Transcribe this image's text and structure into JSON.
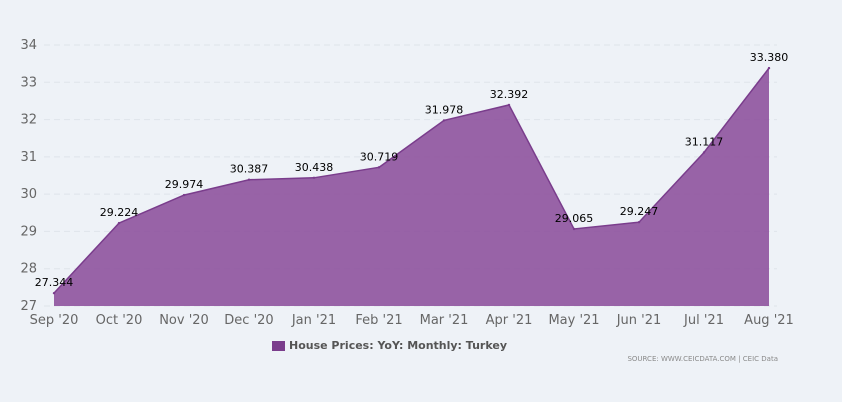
{
  "chart_data": {
    "type": "area",
    "categories": [
      "Sep '20",
      "Oct '20",
      "Nov '20",
      "Dec '20",
      "Jan '21",
      "Feb '21",
      "Mar '21",
      "Apr '21",
      "May '21",
      "Jun '21",
      "Jul '21",
      "Aug '21"
    ],
    "series": [
      {
        "name": "House Prices: YoY: Monthly: Turkey",
        "values": [
          27.344,
          29.224,
          29.974,
          30.387,
          30.438,
          30.719,
          31.978,
          32.392,
          29.065,
          29.247,
          31.117,
          33.38
        ],
        "labels": [
          "27.344",
          "29.224",
          "29.974",
          "30.387",
          "30.438",
          "30.719",
          "31.978",
          "32.392",
          "29.065",
          "29.247",
          "31.117",
          "33.380"
        ]
      }
    ],
    "yticks": [
      "27",
      "28",
      "29",
      "30",
      "31",
      "32",
      "33",
      "34"
    ],
    "ylim": [
      27,
      34
    ],
    "grid": true,
    "legend_position": "bottom-center",
    "colors": {
      "fill": "#8c4f9c",
      "line": "#7a3d8c",
      "swatch": "#7a3d8c"
    }
  },
  "source": "SOURCE: WWW.CEICDATA.COM | CEIC Data"
}
